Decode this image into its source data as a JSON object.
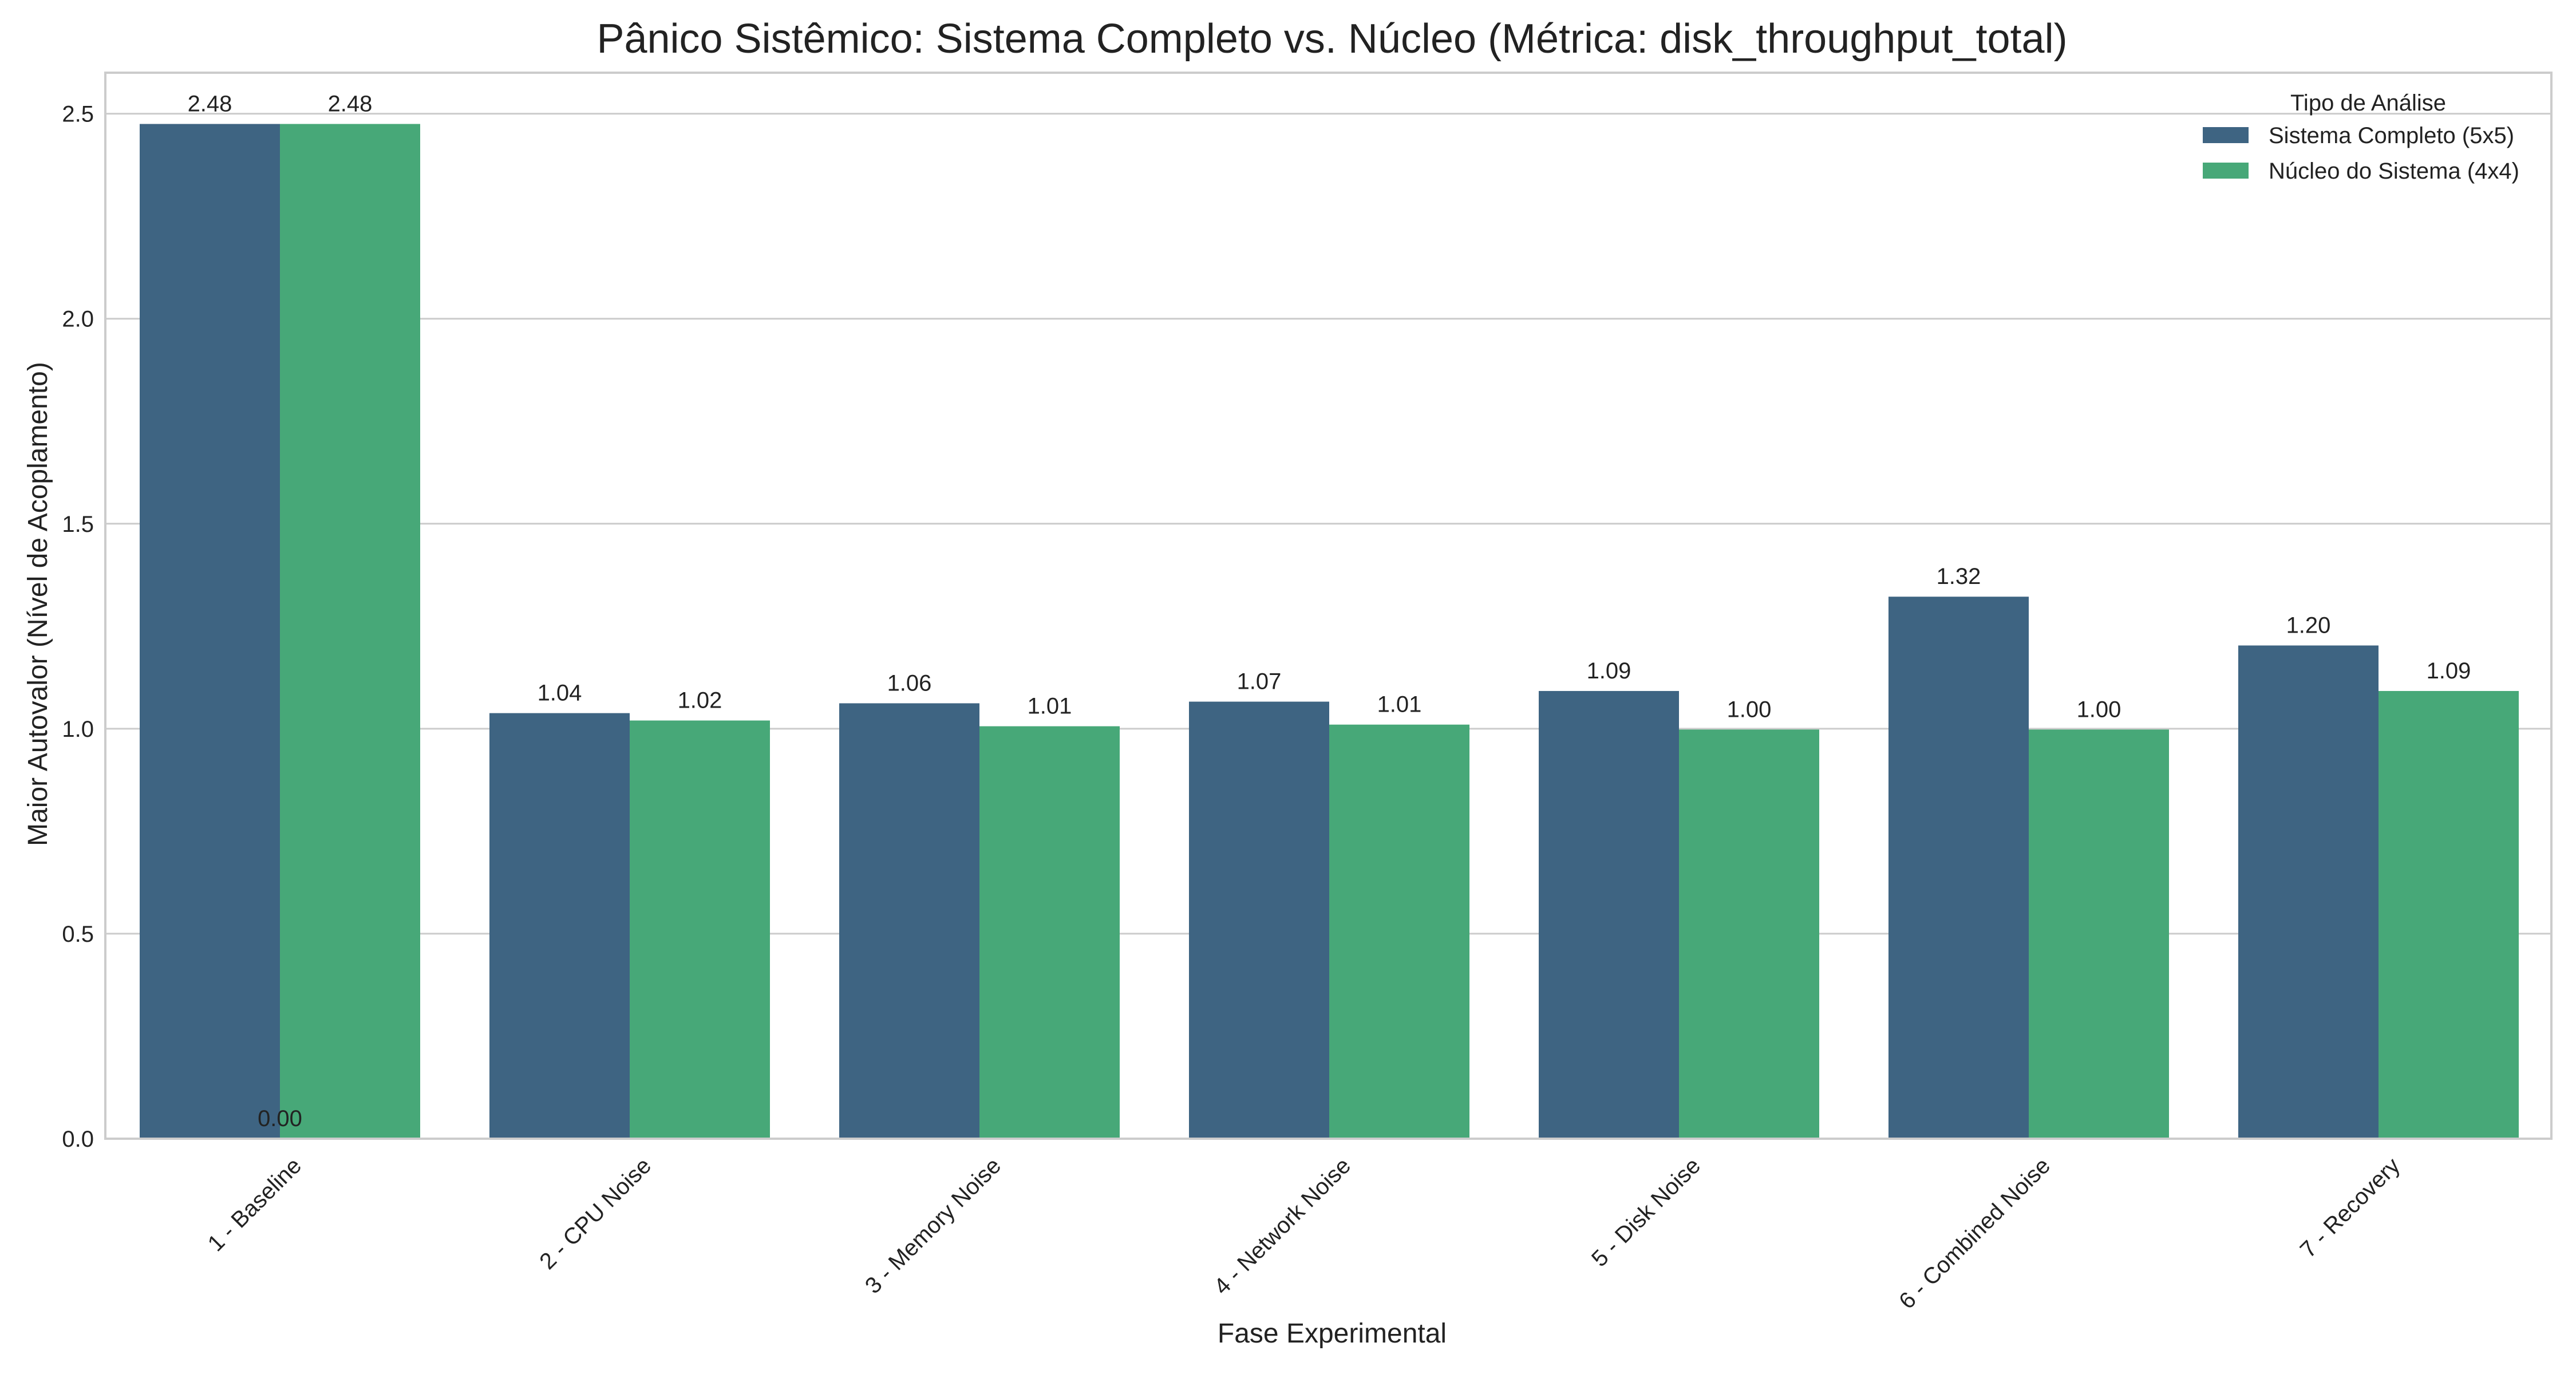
{
  "chart_data": {
    "type": "bar",
    "title": "Pânico Sistêmico: Sistema Completo vs. Núcleo (Métrica: disk_throughput_total)",
    "xlabel": "Fase Experimental",
    "ylabel": "Maior Autovalor (Nível de Acoplamento)",
    "ylim": [
      0,
      2.6
    ],
    "yticks": [
      0.0,
      0.5,
      1.0,
      1.5,
      2.0,
      2.5
    ],
    "ytick_labels": [
      "0.0",
      "0.5",
      "1.0",
      "1.5",
      "2.0",
      "2.5"
    ],
    "grid": "horizontal",
    "categories": [
      "1 - Baseline",
      "2 - CPU Noise",
      "3 - Memory Noise",
      "4 - Network Noise",
      "5 - Disk Noise",
      "6 - Combined Noise",
      "7 - Recovery"
    ],
    "legend": {
      "title": "Tipo de Análise",
      "placement": "top-right"
    },
    "series": [
      {
        "name": "Sistema Completo (5x5)",
        "color": "#3e6482",
        "values": [
          2.475,
          1.038,
          1.062,
          1.066,
          1.092,
          1.322,
          1.203
        ],
        "labels": [
          "2.48",
          "1.04",
          "1.06",
          "1.07",
          "1.09",
          "1.32",
          "1.20"
        ]
      },
      {
        "name": "Núcleo do Sistema (4x4)",
        "color": "#47a878",
        "values": [
          2.475,
          1.02,
          1.006,
          1.01,
          0.998,
          0.998,
          1.092
        ],
        "labels": [
          "2.48",
          "1.02",
          "1.01",
          "1.01",
          "1.00",
          "1.00",
          "1.09"
        ]
      }
    ],
    "annotations": [
      {
        "text": "0.00",
        "category_index": 0,
        "y": 0.0
      }
    ]
  }
}
